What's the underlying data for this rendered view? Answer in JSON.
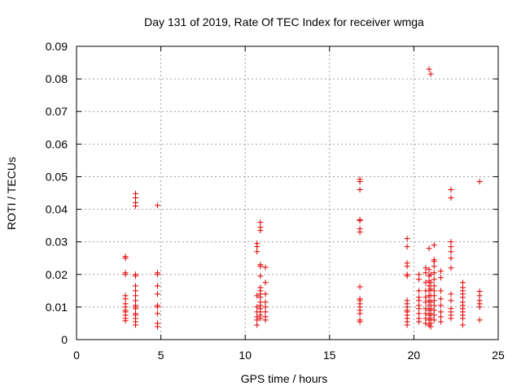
{
  "chart_data": {
    "type": "scatter",
    "title": "Day 131 of 2019, Rate Of TEC Index for receiver wmga",
    "xlabel": "GPS time / hours",
    "ylabel": "ROTI / TECUs",
    "xlim": [
      0,
      25
    ],
    "ylim": [
      0,
      0.09
    ],
    "x_ticks": [
      0,
      5,
      10,
      15,
      20,
      25
    ],
    "y_ticks": [
      0,
      0.01,
      0.02,
      0.03,
      0.04,
      0.05,
      0.06,
      0.07,
      0.08,
      0.09
    ],
    "x_tick_labels": [
      "0",
      "5",
      "10",
      "15",
      "20",
      "25"
    ],
    "y_tick_labels": [
      "0",
      "0.01",
      "0.02",
      "0.03",
      "0.04",
      "0.05",
      "0.06",
      "0.07",
      "0.08",
      "0.09"
    ],
    "grid": true,
    "marker": "+",
    "marker_color": "#e00000",
    "series": [
      {
        "name": "ROTI",
        "points": [
          [
            2.9,
            0.0255
          ],
          [
            2.9,
            0.025
          ],
          [
            2.9,
            0.0205
          ],
          [
            2.9,
            0.02
          ],
          [
            2.9,
            0.0135
          ],
          [
            2.9,
            0.0125
          ],
          [
            2.9,
            0.011
          ],
          [
            2.9,
            0.01
          ],
          [
            2.9,
            0.009
          ],
          [
            2.9,
            0.0085
          ],
          [
            2.9,
            0.0075
          ],
          [
            2.9,
            0.0065
          ],
          [
            2.9,
            0.0058
          ],
          [
            3.5,
            0.0448
          ],
          [
            3.5,
            0.0435
          ],
          [
            3.5,
            0.042
          ],
          [
            3.5,
            0.041
          ],
          [
            3.5,
            0.02
          ],
          [
            3.5,
            0.0195
          ],
          [
            3.5,
            0.0165
          ],
          [
            3.5,
            0.015
          ],
          [
            3.5,
            0.0135
          ],
          [
            3.5,
            0.012
          ],
          [
            3.5,
            0.0105
          ],
          [
            3.5,
            0.01
          ],
          [
            3.5,
            0.0095
          ],
          [
            3.5,
            0.008
          ],
          [
            3.5,
            0.0075
          ],
          [
            3.5,
            0.0065
          ],
          [
            3.5,
            0.0055
          ],
          [
            3.5,
            0.0045
          ],
          [
            4.8,
            0.0412
          ],
          [
            4.8,
            0.0205
          ],
          [
            4.8,
            0.02
          ],
          [
            4.8,
            0.0165
          ],
          [
            4.8,
            0.014
          ],
          [
            4.8,
            0.0105
          ],
          [
            4.8,
            0.01
          ],
          [
            4.8,
            0.008
          ],
          [
            4.8,
            0.005
          ],
          [
            4.8,
            0.004
          ],
          [
            10.7,
            0.0295
          ],
          [
            10.7,
            0.0285
          ],
          [
            10.7,
            0.027
          ],
          [
            10.7,
            0.0135
          ],
          [
            10.7,
            0.01
          ],
          [
            10.7,
            0.0085
          ],
          [
            10.7,
            0.007
          ],
          [
            10.7,
            0.006
          ],
          [
            10.7,
            0.0045
          ],
          [
            10.9,
            0.036
          ],
          [
            10.9,
            0.0345
          ],
          [
            10.9,
            0.0335
          ],
          [
            10.9,
            0.023
          ],
          [
            10.9,
            0.0225
          ],
          [
            10.9,
            0.0195
          ],
          [
            10.9,
            0.016
          ],
          [
            10.9,
            0.015
          ],
          [
            10.9,
            0.014
          ],
          [
            10.9,
            0.013
          ],
          [
            10.9,
            0.0115
          ],
          [
            10.9,
            0.0105
          ],
          [
            10.9,
            0.0095
          ],
          [
            10.9,
            0.0085
          ],
          [
            10.9,
            0.0075
          ],
          [
            10.9,
            0.0065
          ],
          [
            11.2,
            0.0222
          ],
          [
            11.2,
            0.0175
          ],
          [
            11.2,
            0.014
          ],
          [
            11.2,
            0.0115
          ],
          [
            11.2,
            0.01
          ],
          [
            11.2,
            0.0085
          ],
          [
            11.2,
            0.007
          ],
          [
            11.2,
            0.006
          ],
          [
            16.8,
            0.0492
          ],
          [
            16.8,
            0.0485
          ],
          [
            16.8,
            0.046
          ],
          [
            16.8,
            0.0368
          ],
          [
            16.8,
            0.0365
          ],
          [
            16.8,
            0.034
          ],
          [
            16.8,
            0.033
          ],
          [
            16.8,
            0.0162
          ],
          [
            16.8,
            0.0125
          ],
          [
            16.8,
            0.012
          ],
          [
            16.8,
            0.011
          ],
          [
            16.8,
            0.01
          ],
          [
            16.8,
            0.009
          ],
          [
            16.8,
            0.008
          ],
          [
            16.8,
            0.006
          ],
          [
            16.8,
            0.0055
          ],
          [
            19.6,
            0.031
          ],
          [
            19.6,
            0.0285
          ],
          [
            19.6,
            0.0235
          ],
          [
            19.6,
            0.0225
          ],
          [
            19.6,
            0.02
          ],
          [
            19.6,
            0.0195
          ],
          [
            19.6,
            0.012
          ],
          [
            19.6,
            0.011
          ],
          [
            19.6,
            0.01
          ],
          [
            19.6,
            0.009
          ],
          [
            19.6,
            0.0085
          ],
          [
            19.6,
            0.0075
          ],
          [
            19.6,
            0.0065
          ],
          [
            19.6,
            0.0055
          ],
          [
            19.6,
            0.0045
          ],
          [
            20.3,
            0.02
          ],
          [
            20.3,
            0.0185
          ],
          [
            20.3,
            0.015
          ],
          [
            20.3,
            0.013
          ],
          [
            20.3,
            0.012
          ],
          [
            20.3,
            0.0105
          ],
          [
            20.3,
            0.0095
          ],
          [
            20.3,
            0.008
          ],
          [
            20.3,
            0.0065
          ],
          [
            20.3,
            0.0055
          ],
          [
            20.7,
            0.022
          ],
          [
            20.7,
            0.0205
          ],
          [
            20.7,
            0.0175
          ],
          [
            20.7,
            0.015
          ],
          [
            20.7,
            0.013
          ],
          [
            20.7,
            0.0115
          ],
          [
            20.7,
            0.0095
          ],
          [
            20.7,
            0.008
          ],
          [
            20.7,
            0.0065
          ],
          [
            20.7,
            0.005
          ],
          [
            20.9,
            0.083
          ],
          [
            20.9,
            0.028
          ],
          [
            20.9,
            0.0215
          ],
          [
            20.9,
            0.0195
          ],
          [
            20.9,
            0.018
          ],
          [
            20.9,
            0.0165
          ],
          [
            20.9,
            0.015
          ],
          [
            20.9,
            0.0135
          ],
          [
            20.9,
            0.012
          ],
          [
            20.9,
            0.0105
          ],
          [
            20.9,
            0.009
          ],
          [
            20.9,
            0.0075
          ],
          [
            20.9,
            0.006
          ],
          [
            20.9,
            0.0045
          ],
          [
            21.0,
            0.0815
          ],
          [
            21.0,
            0.02
          ],
          [
            21.0,
            0.0175
          ],
          [
            21.0,
            0.0155
          ],
          [
            21.0,
            0.0135
          ],
          [
            21.0,
            0.0115
          ],
          [
            21.0,
            0.0095
          ],
          [
            21.0,
            0.008
          ],
          [
            21.0,
            0.0065
          ],
          [
            21.0,
            0.005
          ],
          [
            21.0,
            0.004
          ],
          [
            21.2,
            0.029
          ],
          [
            21.2,
            0.0245
          ],
          [
            21.2,
            0.024
          ],
          [
            21.2,
            0.0225
          ],
          [
            21.2,
            0.0205
          ],
          [
            21.2,
            0.0185
          ],
          [
            21.2,
            0.0165
          ],
          [
            21.2,
            0.015
          ],
          [
            21.2,
            0.0135
          ],
          [
            21.2,
            0.012
          ],
          [
            21.2,
            0.0105
          ],
          [
            21.2,
            0.009
          ],
          [
            21.2,
            0.0075
          ],
          [
            21.2,
            0.006
          ],
          [
            21.6,
            0.021
          ],
          [
            21.6,
            0.019
          ],
          [
            21.6,
            0.015
          ],
          [
            21.6,
            0.0125
          ],
          [
            21.6,
            0.0105
          ],
          [
            21.6,
            0.0085
          ],
          [
            21.6,
            0.007
          ],
          [
            21.6,
            0.0055
          ],
          [
            22.2,
            0.046
          ],
          [
            22.2,
            0.0435
          ],
          [
            22.2,
            0.03
          ],
          [
            22.2,
            0.0285
          ],
          [
            22.2,
            0.027
          ],
          [
            22.2,
            0.025
          ],
          [
            22.2,
            0.022
          ],
          [
            22.2,
            0.014
          ],
          [
            22.2,
            0.012
          ],
          [
            22.2,
            0.0095
          ],
          [
            22.2,
            0.0085
          ],
          [
            22.2,
            0.0075
          ],
          [
            22.2,
            0.0065
          ],
          [
            22.9,
            0.0175
          ],
          [
            22.9,
            0.016
          ],
          [
            22.9,
            0.015
          ],
          [
            22.9,
            0.014
          ],
          [
            22.9,
            0.013
          ],
          [
            22.9,
            0.0115
          ],
          [
            22.9,
            0.0105
          ],
          [
            22.9,
            0.0095
          ],
          [
            22.9,
            0.0085
          ],
          [
            22.9,
            0.0075
          ],
          [
            22.9,
            0.0065
          ],
          [
            22.9,
            0.0045
          ],
          [
            23.9,
            0.0485
          ],
          [
            23.9,
            0.0148
          ],
          [
            23.9,
            0.0135
          ],
          [
            23.9,
            0.012
          ],
          [
            23.9,
            0.011
          ],
          [
            23.9,
            0.01
          ],
          [
            23.9,
            0.006
          ]
        ]
      }
    ]
  }
}
